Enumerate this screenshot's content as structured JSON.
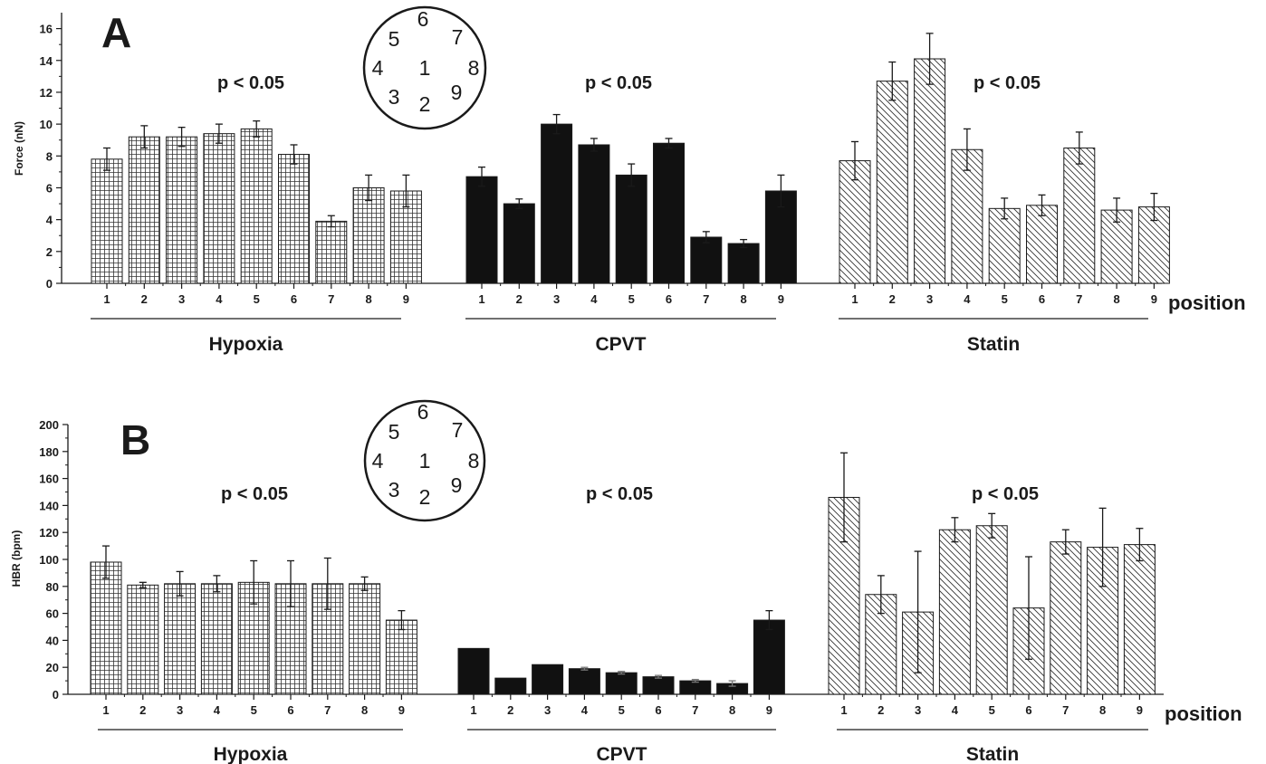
{
  "chart_data": [
    {
      "panel": "A",
      "type": "bar",
      "ylabel": "Force (nN)",
      "xlabel": "position",
      "ylim": [
        0,
        17
      ],
      "yticks": [
        0,
        2,
        4,
        6,
        8,
        10,
        12,
        14,
        16
      ],
      "categories": [
        "1",
        "2",
        "3",
        "4",
        "5",
        "6",
        "7",
        "8",
        "9"
      ],
      "groups": [
        {
          "name": "Hypoxia",
          "pattern": "grid",
          "pvalue": "p < 0.05",
          "values": [
            7.8,
            9.2,
            9.2,
            9.4,
            9.7,
            8.1,
            3.9,
            6.0,
            5.8
          ],
          "errors": [
            0.7,
            0.7,
            0.6,
            0.6,
            0.5,
            0.6,
            0.35,
            0.8,
            1.0
          ]
        },
        {
          "name": "CPVT",
          "pattern": "solid",
          "pvalue": "p < 0.05",
          "values": [
            6.7,
            5.0,
            10.0,
            8.7,
            6.8,
            8.8,
            2.9,
            2.5,
            5.8
          ],
          "errors": [
            0.6,
            0.3,
            0.6,
            0.4,
            0.7,
            0.3,
            0.35,
            0.25,
            1.0
          ]
        },
        {
          "name": "Statin",
          "pattern": "hatch",
          "pvalue": "p < 0.05",
          "values": [
            7.7,
            12.7,
            14.1,
            8.4,
            4.7,
            4.9,
            8.5,
            4.6,
            4.8
          ],
          "errors": [
            1.2,
            1.2,
            1.6,
            1.3,
            0.65,
            0.65,
            1.0,
            0.75,
            0.85
          ]
        }
      ]
    },
    {
      "panel": "B",
      "type": "bar",
      "ylabel": "HBR (bpm)",
      "xlabel": "position",
      "ylim": [
        0,
        200
      ],
      "yticks": [
        0,
        20,
        40,
        60,
        80,
        100,
        120,
        140,
        160,
        180,
        200
      ],
      "categories": [
        "1",
        "2",
        "3",
        "4",
        "5",
        "6",
        "7",
        "8",
        "9"
      ],
      "groups": [
        {
          "name": "Hypoxia",
          "pattern": "grid",
          "pvalue": "p < 0.05",
          "values": [
            98,
            81,
            82,
            82,
            83,
            82,
            82,
            82,
            55
          ],
          "errors": [
            12,
            2,
            9,
            6,
            16,
            17,
            19,
            5,
            7
          ]
        },
        {
          "name": "CPVT",
          "pattern": "solid",
          "pvalue": "p < 0.05",
          "values": [
            34,
            12,
            22,
            19,
            16,
            13,
            10,
            8,
            55
          ],
          "errors": [
            0,
            0,
            0,
            1,
            1,
            1,
            1,
            2,
            7
          ]
        },
        {
          "name": "Statin",
          "pattern": "hatch",
          "pvalue": "p < 0.05",
          "values": [
            146,
            74,
            61,
            122,
            125,
            64,
            113,
            109,
            111
          ],
          "errors": [
            33,
            14,
            45,
            9,
            9,
            38,
            9,
            29,
            12
          ]
        }
      ]
    }
  ],
  "inset_positions": [
    "1",
    "2",
    "3",
    "4",
    "5",
    "6",
    "7",
    "8",
    "9"
  ]
}
